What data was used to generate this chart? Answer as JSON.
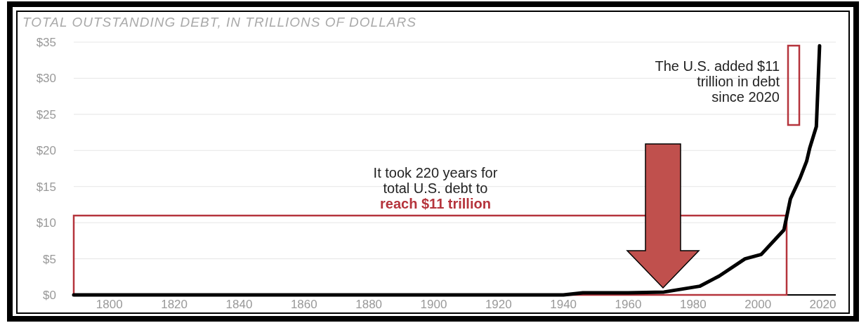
{
  "chart_data": {
    "type": "line",
    "title": "TOTAL OUTSTANDING DEBT, IN TRILLIONS OF DOLLARS",
    "x": [
      1789,
      1860,
      1917,
      1940,
      1946,
      1960,
      1971,
      1982,
      1988,
      1996,
      2001,
      2008,
      2010,
      2013,
      2015,
      2016,
      2018,
      2019
    ],
    "series": [
      {
        "color": "#000000",
        "values": [
          0,
          0,
          0,
          0,
          0.3,
          0.3,
          0.4,
          1.2,
          2.6,
          5.0,
          5.6,
          9.0,
          13.3,
          16.2,
          18.5,
          20.4,
          23.3,
          34.5
        ]
      }
    ],
    "xlim": [
      1789,
      2024
    ],
    "xticks": [
      1800,
      1820,
      1840,
      1860,
      1880,
      1900,
      1920,
      1940,
      1960,
      1980,
      2000,
      2020
    ],
    "ylim": [
      0,
      35
    ],
    "yticks": [
      {
        "value": 0,
        "label": "$0"
      },
      {
        "value": 5,
        "label": "$5"
      },
      {
        "value": 10,
        "label": "$10"
      },
      {
        "value": 15,
        "label": "$15"
      },
      {
        "value": 20,
        "label": "$20"
      },
      {
        "value": 25,
        "label": "$25"
      },
      {
        "value": 30,
        "label": "$30"
      },
      {
        "value": 35,
        "label": "$35"
      }
    ],
    "grid": "y",
    "annotations": [
      "It took 220 years for total U.S. debt to reach $11 trillion",
      "The U.S. added $11 trillion in debt since 2020"
    ]
  }
}
